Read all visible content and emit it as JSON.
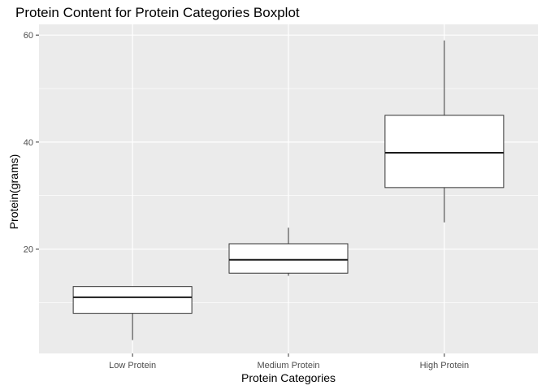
{
  "chart_data": {
    "type": "boxplot",
    "title": "Protein Content for Protein Categories Boxplot",
    "xlabel": "Protein Categories",
    "ylabel": "Protein(grams)",
    "categories": [
      "Low Protein",
      "Medium Protein",
      "High Protein"
    ],
    "boxes": [
      {
        "category": "Low Protein",
        "whisker_low": 3,
        "q1": 8,
        "median": 11,
        "q3": 13,
        "whisker_high": 13
      },
      {
        "category": "Medium Protein",
        "whisker_low": 15,
        "q1": 15.5,
        "median": 18,
        "q3": 21,
        "whisker_high": 24
      },
      {
        "category": "High Protein",
        "whisker_low": 25,
        "q1": 31.5,
        "median": 38,
        "q3": 45,
        "whisker_high": 59
      }
    ],
    "ylim": [
      0.5,
      62
    ],
    "yticks": [
      20,
      40,
      60
    ],
    "ytick_labels": [
      "20",
      "40",
      "60"
    ],
    "grid": true,
    "colors": {
      "panel": "#ebebeb",
      "grid": "#ffffff",
      "box_fill": "#ffffff",
      "box_line": "#333333"
    }
  }
}
